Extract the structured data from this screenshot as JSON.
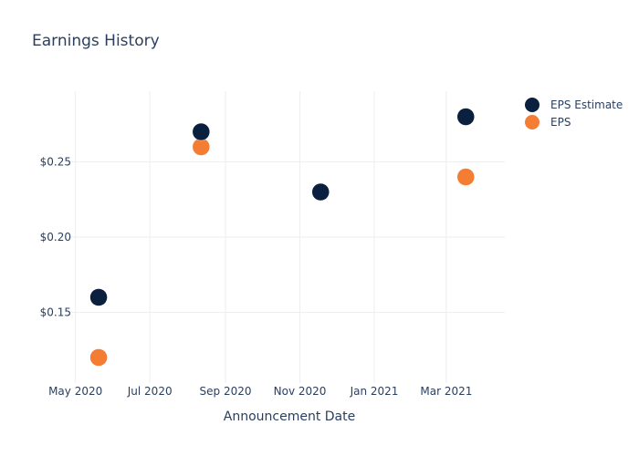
{
  "chart_data": {
    "type": "scatter",
    "title": "Earnings History",
    "xlabel": "Announcement Date",
    "ylabel": "",
    "x_ticks": [
      "May 2020",
      "Jul 2020",
      "Sep 2020",
      "Nov 2020",
      "Jan 2021",
      "Mar 2021"
    ],
    "x_tick_dates": [
      "2020-05-01",
      "2020-07-01",
      "2020-09-01",
      "2020-11-01",
      "2021-01-01",
      "2021-03-01"
    ],
    "x_range": [
      "2020-04-29",
      "2021-04-18"
    ],
    "y_ticks": [
      0.15,
      0.2,
      0.25
    ],
    "y_tick_labels": [
      "$0.15",
      "$0.20",
      "$0.25"
    ],
    "ylim": [
      0.103,
      0.297
    ],
    "grid": true,
    "legend_position": "top-right",
    "series": [
      {
        "name": "EPS Estimate",
        "color": "#0b1f3f",
        "points": [
          {
            "x": "2020-05-20",
            "y": 0.16
          },
          {
            "x": "2020-08-12",
            "y": 0.27
          },
          {
            "x": "2020-11-18",
            "y": 0.23
          },
          {
            "x": "2021-03-17",
            "y": 0.28
          }
        ]
      },
      {
        "name": "EPS",
        "color": "#f47c33",
        "points": [
          {
            "x": "2020-05-20",
            "y": 0.12
          },
          {
            "x": "2020-08-12",
            "y": 0.26
          },
          {
            "x": "2020-11-18",
            "y": 0.23
          },
          {
            "x": "2021-03-17",
            "y": 0.24
          }
        ]
      }
    ]
  }
}
